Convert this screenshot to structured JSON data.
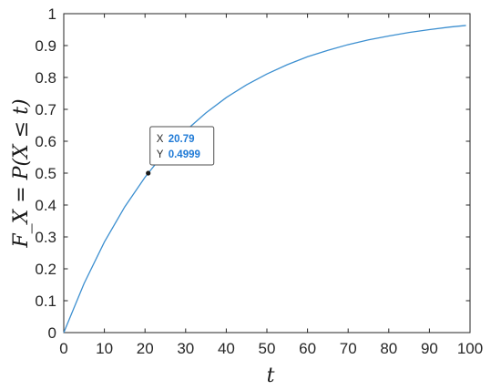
{
  "chart_data": {
    "type": "line",
    "xlabel": "t",
    "ylabel": "F_X = P(X ≤ t)",
    "xlim": [
      0,
      100
    ],
    "ylim": [
      0,
      1
    ],
    "xticks": [
      "0",
      "10",
      "20",
      "30",
      "40",
      "50",
      "60",
      "70",
      "80",
      "90",
      "100"
    ],
    "yticks": [
      "0",
      "0.1",
      "0.2",
      "0.3",
      "0.4",
      "0.5",
      "0.6",
      "0.7",
      "0.8",
      "0.9",
      "1"
    ],
    "series": [
      {
        "color": "#3c8fd0",
        "x": [
          0,
          5,
          10,
          15,
          20,
          20.79,
          25,
          30,
          35,
          40,
          45,
          50,
          55,
          60,
          65,
          70,
          75,
          80,
          85,
          90,
          95,
          99
        ],
        "y": [
          0,
          0.154,
          0.284,
          0.394,
          0.487,
          0.4999,
          0.566,
          0.633,
          0.689,
          0.737,
          0.777,
          0.811,
          0.84,
          0.865,
          0.885,
          0.903,
          0.918,
          0.93,
          0.941,
          0.95,
          0.958,
          0.963
        ]
      }
    ],
    "datatip": {
      "x_key": "X",
      "x_value": "20.79",
      "y_key": "Y",
      "y_value": "0.4999",
      "point": [
        20.79,
        0.4999
      ]
    },
    "grid": false,
    "box": true
  }
}
